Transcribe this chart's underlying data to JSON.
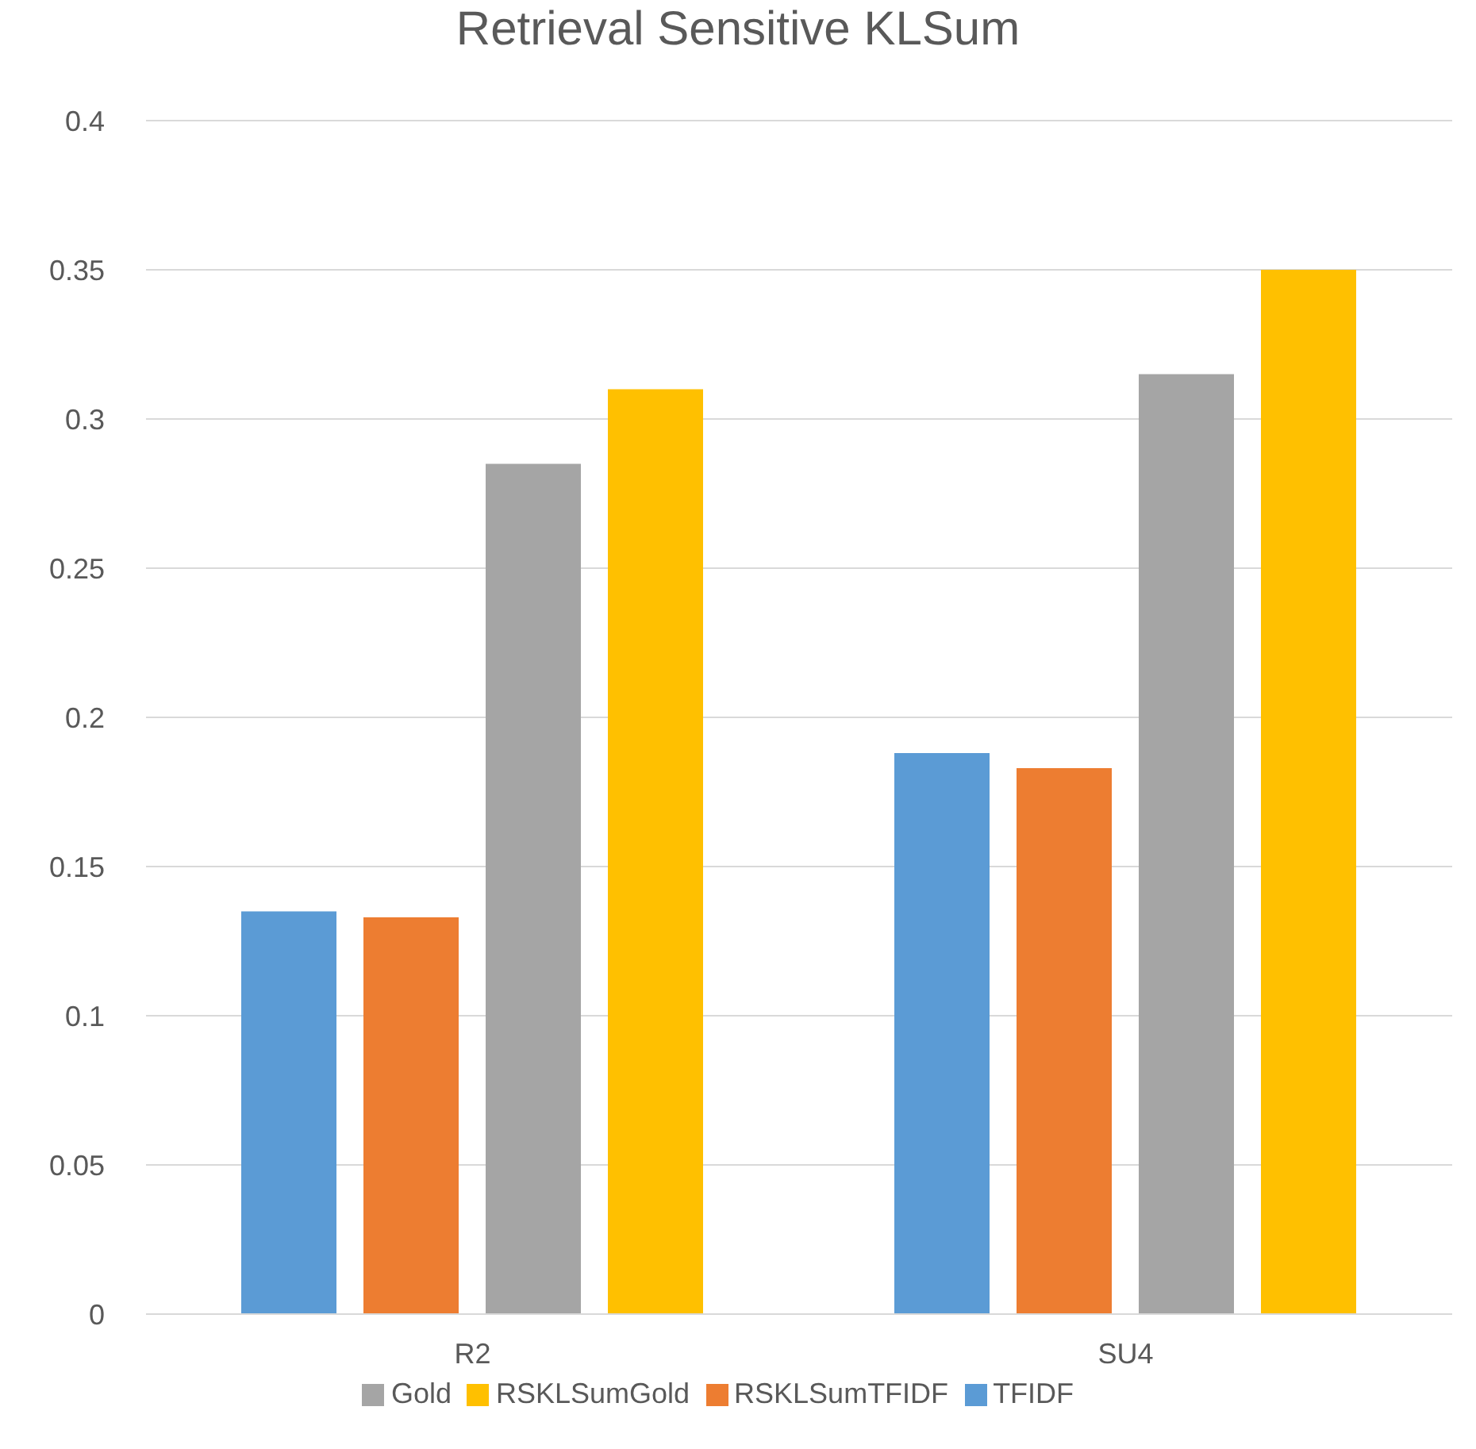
{
  "chart_data": {
    "type": "bar",
    "title": "Retrieval Sensitive KLSum",
    "categories": [
      "R2",
      "SU4"
    ],
    "series": [
      {
        "name": "TFIDF",
        "color": "#5b9bd5",
        "values": [
          0.135,
          0.188
        ]
      },
      {
        "name": "RSKLSumTFIDF",
        "color": "#ed7d31",
        "values": [
          0.133,
          0.183
        ]
      },
      {
        "name": "Gold",
        "color": "#a5a5a5",
        "values": [
          0.285,
          0.315
        ]
      },
      {
        "name": "RSKLSumGold",
        "color": "#ffc000",
        "values": [
          0.31,
          0.35
        ]
      }
    ],
    "ylim": [
      0,
      0.4
    ],
    "yticks": [
      0,
      0.05,
      0.1,
      0.15,
      0.2,
      0.25,
      0.3,
      0.35,
      0.4
    ],
    "grid": "y",
    "legend": "bottom"
  }
}
